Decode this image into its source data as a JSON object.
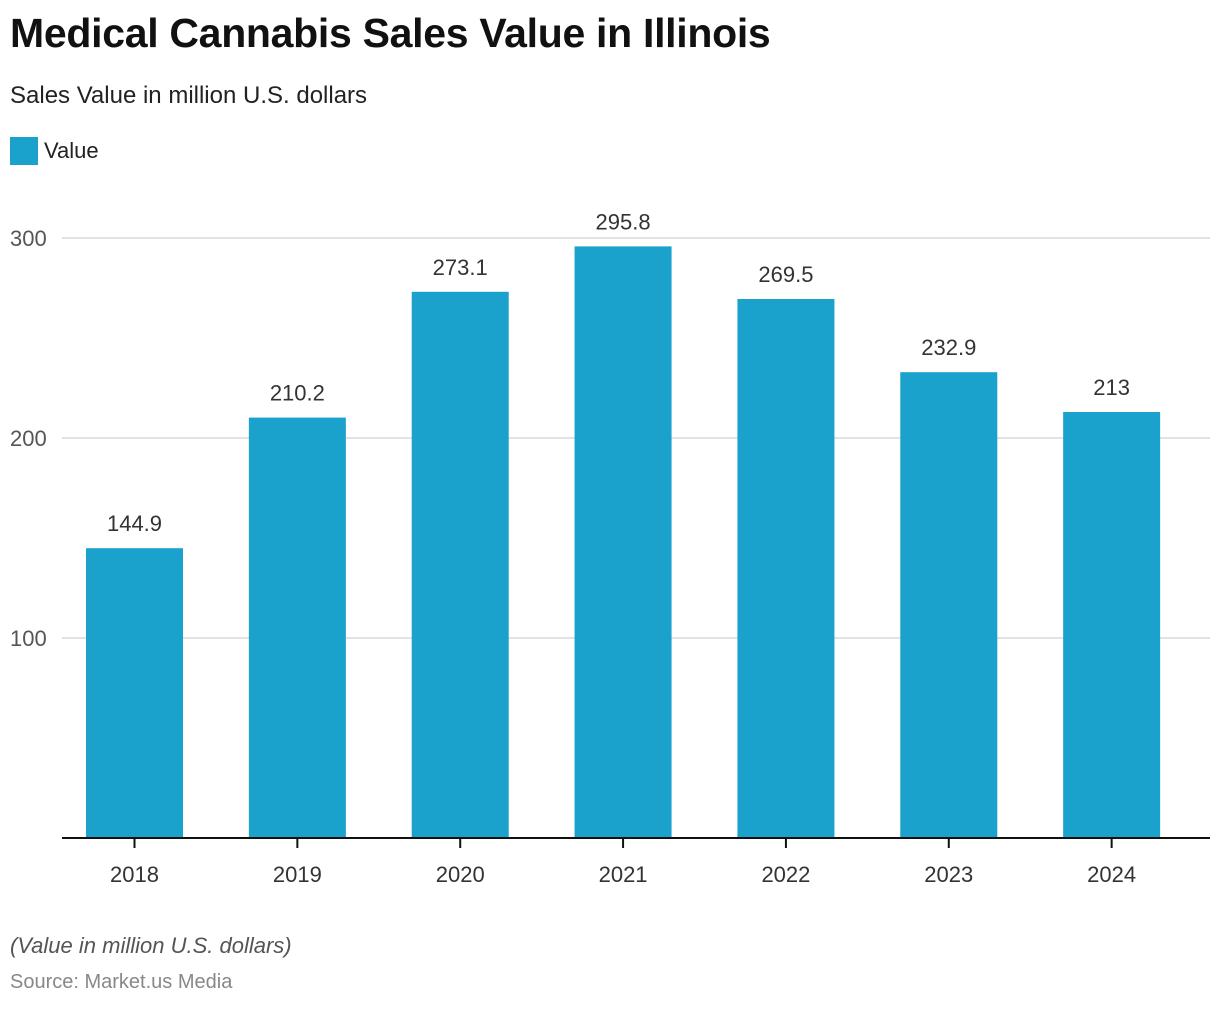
{
  "header": {
    "title": "Medical Cannabis Sales Value in Illinois",
    "subtitle": "Sales Value in million U.S. dollars"
  },
  "legend": {
    "items": [
      {
        "label": "Value",
        "color": "#1aa1cc"
      }
    ]
  },
  "footer": {
    "note": "(Value in million U.S. dollars)",
    "source": "Source: Market.us Media"
  },
  "colors": {
    "bar": "#1aa1cc",
    "grid": "#d9d9d9",
    "axis": "#111111"
  },
  "chart_data": {
    "type": "bar",
    "title": "Medical Cannabis Sales Value in Illinois",
    "subtitle": "Sales Value in million U.S. dollars",
    "xlabel": "",
    "ylabel": "",
    "categories": [
      "2018",
      "2019",
      "2020",
      "2021",
      "2022",
      "2023",
      "2024"
    ],
    "series": [
      {
        "name": "Value",
        "color": "#1aa1cc",
        "values": [
          144.9,
          210.2,
          273.1,
          295.8,
          269.5,
          232.9,
          213
        ],
        "labels": [
          "144.9",
          "210.2",
          "273.1",
          "295.8",
          "269.5",
          "232.9",
          "213"
        ]
      }
    ],
    "ylim": [
      0,
      300
    ],
    "yticks": [
      100,
      200,
      300
    ],
    "ytick_labels": [
      "100",
      "200",
      "300"
    ],
    "grid": true,
    "legend_position": "top-left"
  }
}
